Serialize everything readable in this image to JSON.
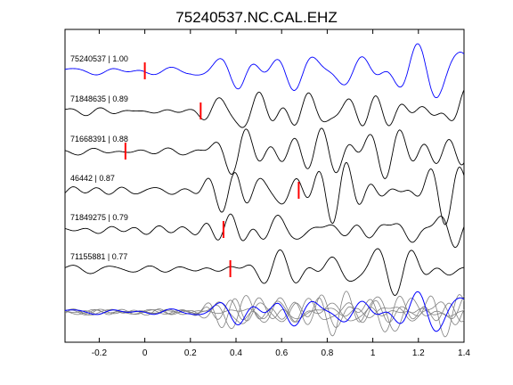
{
  "chart_data": {
    "type": "line",
    "title": "75240537.NC.CAL.EHZ",
    "xlabel": "",
    "ylabel": "",
    "xlim": [
      -0.35,
      1.4
    ],
    "x_ticks": [
      -0.2,
      0,
      0.2,
      0.4,
      0.6,
      0.8,
      1,
      1.2,
      1.4
    ],
    "x_tick_labels": [
      "-0.2",
      "0",
      "0.2",
      "0.4",
      "0.6",
      "0.8",
      "1",
      "1.2",
      "1.4"
    ],
    "grid": false,
    "colors": {
      "reference": "#0000ff",
      "trace": "#000000",
      "stack": "#808080",
      "pick": "#ff0000"
    },
    "traces": [
      {
        "label": "75240537 | 1.00",
        "pick": 0.0,
        "color": "#0000ff"
      },
      {
        "label": "71848635 | 0.89",
        "pick": 0.245,
        "color": "#000000"
      },
      {
        "label": "71668391 | 0.88",
        "pick": -0.085,
        "color": "#000000"
      },
      {
        "label": "46442 | 0.87",
        "pick": 0.675,
        "color": "#000000"
      },
      {
        "label": "71849275 | 0.79",
        "pick": 0.345,
        "color": "#000000"
      },
      {
        "label": "71155881 | 0.77",
        "pick": 0.375,
        "color": "#000000"
      }
    ],
    "stack": {
      "label": "",
      "note": "overlay of aligned waveforms"
    }
  }
}
